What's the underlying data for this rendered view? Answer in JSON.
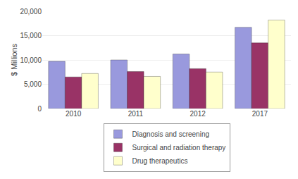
{
  "chart_data": {
    "type": "bar",
    "categories": [
      "2010",
      "2011",
      "2012",
      "2017"
    ],
    "series": [
      {
        "name": "Diagnosis and screening",
        "color": "#9999DD",
        "values": [
          9700,
          10000,
          11200,
          16700
        ]
      },
      {
        "name": "Surgical and radiation therapy",
        "color": "#993366",
        "values": [
          6500,
          7600,
          8200,
          13500
        ]
      },
      {
        "name": "Drug therapeutics",
        "color": "#FFFFCC",
        "values": [
          7200,
          6600,
          7500,
          18200
        ]
      }
    ],
    "ylabel": "$ Millions",
    "ylim": [
      0,
      20000
    ],
    "yticks": [
      0,
      {
        "value": 5000,
        "label": "5,000"
      },
      {
        "value": 10000,
        "label": "10,000"
      },
      {
        "value": 15000,
        "label": "15,000"
      },
      {
        "value": 20000,
        "label": "20,000"
      }
    ],
    "grid": true,
    "legend": "bottom"
  }
}
